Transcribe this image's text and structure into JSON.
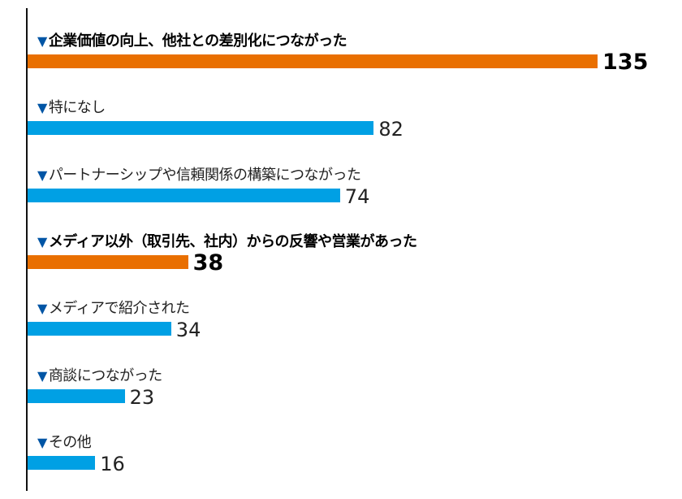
{
  "chart_data": {
    "type": "bar",
    "orientation": "horizontal",
    "categories": [
      "企業価値の向上、他社との差別化につながった",
      "特になし",
      "パートナーシップや信頼関係の構築につながった",
      "メディア以外（取引先、社内）からの反響や営業があった",
      "メディアで紹介された",
      "商談につながった",
      "その他"
    ],
    "values": [
      135,
      82,
      74,
      38,
      34,
      23,
      16
    ],
    "highlighted": [
      true,
      false,
      false,
      true,
      false,
      false,
      false
    ],
    "marker": "▼",
    "colors": {
      "highlight": "#e96f00",
      "normal": "#00a0e4",
      "marker": "#0055a5"
    },
    "xlim": [
      0,
      135
    ],
    "title": "",
    "xlabel": "",
    "ylabel": "",
    "grid": false,
    "legend": "none"
  }
}
